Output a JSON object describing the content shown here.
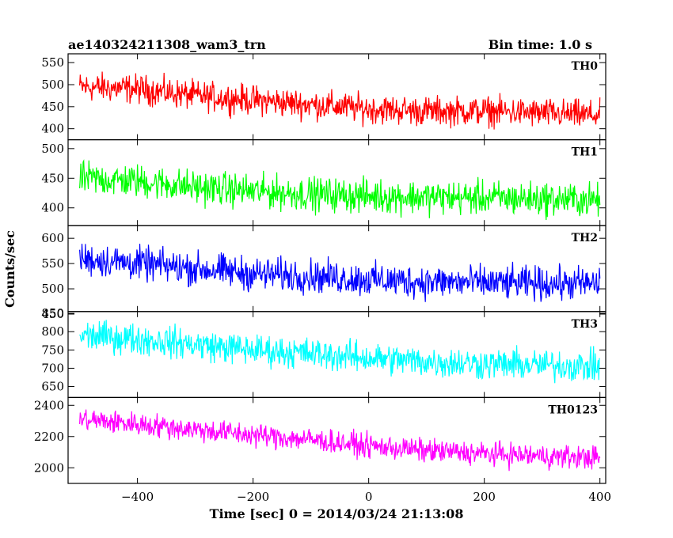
{
  "chart_data": {
    "type": "line",
    "title": "ae140324211308_wam3_trn",
    "bin_time": "Bin time: 1.0 s",
    "xlabel": "Time [sec] 0 = 2014/03/24 21:13:08",
    "ylabel": "Counts/sec",
    "xlim": [
      -520,
      410
    ],
    "xticks": [
      -400,
      -200,
      0,
      200,
      400
    ],
    "grid": false,
    "x_range": [
      -500,
      400
    ],
    "panels": [
      {
        "name": "TH0",
        "color": "#ff0000",
        "ylim": [
          375,
          570
        ],
        "yticks": [
          400,
          450,
          500,
          550
        ],
        "trend": [
          [
            -500,
            495
          ],
          [
            -400,
            490
          ],
          [
            -300,
            475
          ],
          [
            -200,
            465
          ],
          [
            -100,
            455
          ],
          [
            0,
            445
          ],
          [
            100,
            440
          ],
          [
            200,
            440
          ],
          [
            300,
            435
          ],
          [
            400,
            430
          ]
        ],
        "noise_amplitude": 35
      },
      {
        "name": "TH1",
        "color": "#00ff00",
        "ylim": [
          370,
          515
        ],
        "yticks": [
          400,
          450,
          500
        ],
        "trend": [
          [
            -500,
            450
          ],
          [
            -400,
            445
          ],
          [
            -300,
            435
          ],
          [
            -200,
            428
          ],
          [
            -100,
            423
          ],
          [
            0,
            420
          ],
          [
            100,
            418
          ],
          [
            200,
            417
          ],
          [
            300,
            415
          ],
          [
            400,
            413
          ]
        ],
        "noise_amplitude": 30
      },
      {
        "name": "TH2",
        "color": "#0000ff",
        "ylim": [
          455,
          625
        ],
        "yticks": [
          450,
          500,
          550,
          600
        ],
        "trend": [
          [
            -500,
            560
          ],
          [
            -400,
            550
          ],
          [
            -300,
            540
          ],
          [
            -200,
            530
          ],
          [
            -100,
            525
          ],
          [
            0,
            518
          ],
          [
            100,
            514
          ],
          [
            200,
            512
          ],
          [
            300,
            510
          ],
          [
            400,
            510
          ]
        ],
        "noise_amplitude": 35
      },
      {
        "name": "TH3",
        "color": "#00ffff",
        "ylim": [
          620,
          855
        ],
        "yticks": [
          650,
          700,
          750,
          800,
          850
        ],
        "trend": [
          [
            -500,
            790
          ],
          [
            -400,
            780
          ],
          [
            -300,
            765
          ],
          [
            -200,
            750
          ],
          [
            -100,
            740
          ],
          [
            0,
            728
          ],
          [
            100,
            718
          ],
          [
            200,
            712
          ],
          [
            300,
            708
          ],
          [
            400,
            705
          ]
        ],
        "noise_amplitude": 45
      },
      {
        "name": "TH0123",
        "color": "#ff00ff",
        "ylim": [
          1900,
          2450
        ],
        "yticks": [
          2000,
          2200,
          2400
        ],
        "trend": [
          [
            -500,
            2310
          ],
          [
            -400,
            2280
          ],
          [
            -300,
            2245
          ],
          [
            -200,
            2210
          ],
          [
            -100,
            2180
          ],
          [
            0,
            2140
          ],
          [
            100,
            2110
          ],
          [
            200,
            2090
          ],
          [
            300,
            2075
          ],
          [
            400,
            2065
          ]
        ],
        "noise_amplitude": 80
      }
    ]
  }
}
